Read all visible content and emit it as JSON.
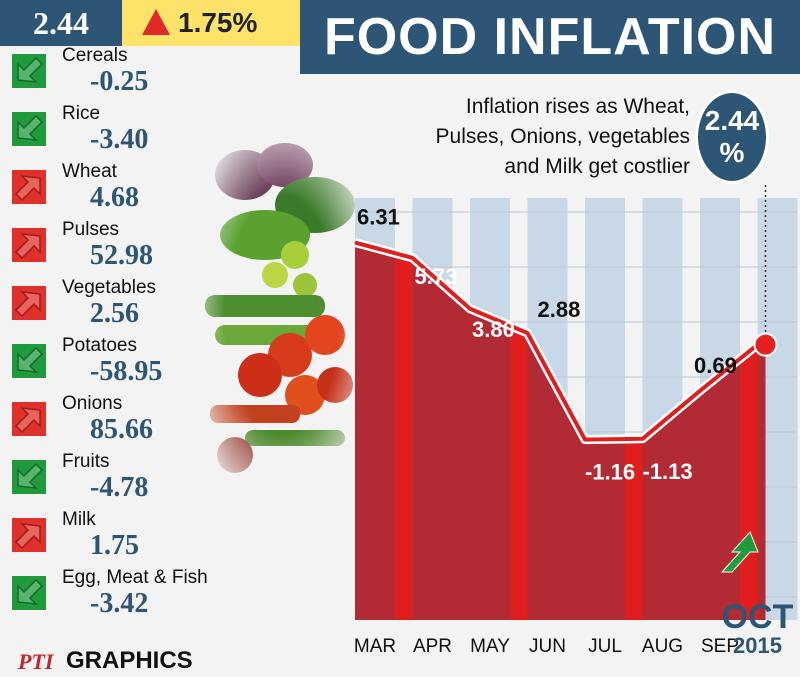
{
  "header": {
    "value": "2.44",
    "change": "1.75%",
    "title": "FOOD INFLATION"
  },
  "subtitle": {
    "lines": [
      "Inflation rises as Wheat,",
      "Pulses, Onions, vegetables",
      "and Milk get costlier"
    ]
  },
  "badge": {
    "value": "2.44",
    "unit": "%"
  },
  "items": [
    {
      "name": "Cereals",
      "value": "-0.25",
      "trend": "down"
    },
    {
      "name": "Rice",
      "value": "-3.40",
      "trend": "down"
    },
    {
      "name": "Wheat",
      "value": "4.68",
      "trend": "up"
    },
    {
      "name": "Pulses",
      "value": "52.98",
      "trend": "up"
    },
    {
      "name": "Vegetables",
      "value": "2.56",
      "trend": "up"
    },
    {
      "name": "Potatoes",
      "value": "-58.95",
      "trend": "down"
    },
    {
      "name": "Onions",
      "value": "85.66",
      "trend": "up"
    },
    {
      "name": "Fruits",
      "value": "-4.78",
      "trend": "down"
    },
    {
      "name": "Milk",
      "value": "1.75",
      "trend": "up"
    },
    {
      "name": "Egg, Meat & Fish",
      "value": "-3.42",
      "trend": "down"
    }
  ],
  "colors": {
    "navy": "#2d5575",
    "red": "#e01e1e",
    "darkred": "#b22a33",
    "green": "#1f9a3c",
    "stripe": "#c9d8e6"
  },
  "chart_data": {
    "type": "area",
    "categories": [
      "MAR",
      "APR",
      "MAY",
      "JUN",
      "JUL",
      "AUG",
      "SEP",
      "OCT"
    ],
    "values": [
      6.31,
      5.73,
      3.8,
      2.88,
      -1.16,
      -1.13,
      0.69,
      2.44
    ],
    "labels": [
      "6.31",
      "5.73",
      "3.80",
      "2.88",
      "-1.16",
      "-1.13",
      "0.69",
      ""
    ],
    "ylim": [
      -8,
      8
    ],
    "xlabel": "",
    "ylabel": "",
    "year": "2015"
  },
  "logo": {
    "brand": "PTI",
    "text": "GRAPHICS"
  }
}
